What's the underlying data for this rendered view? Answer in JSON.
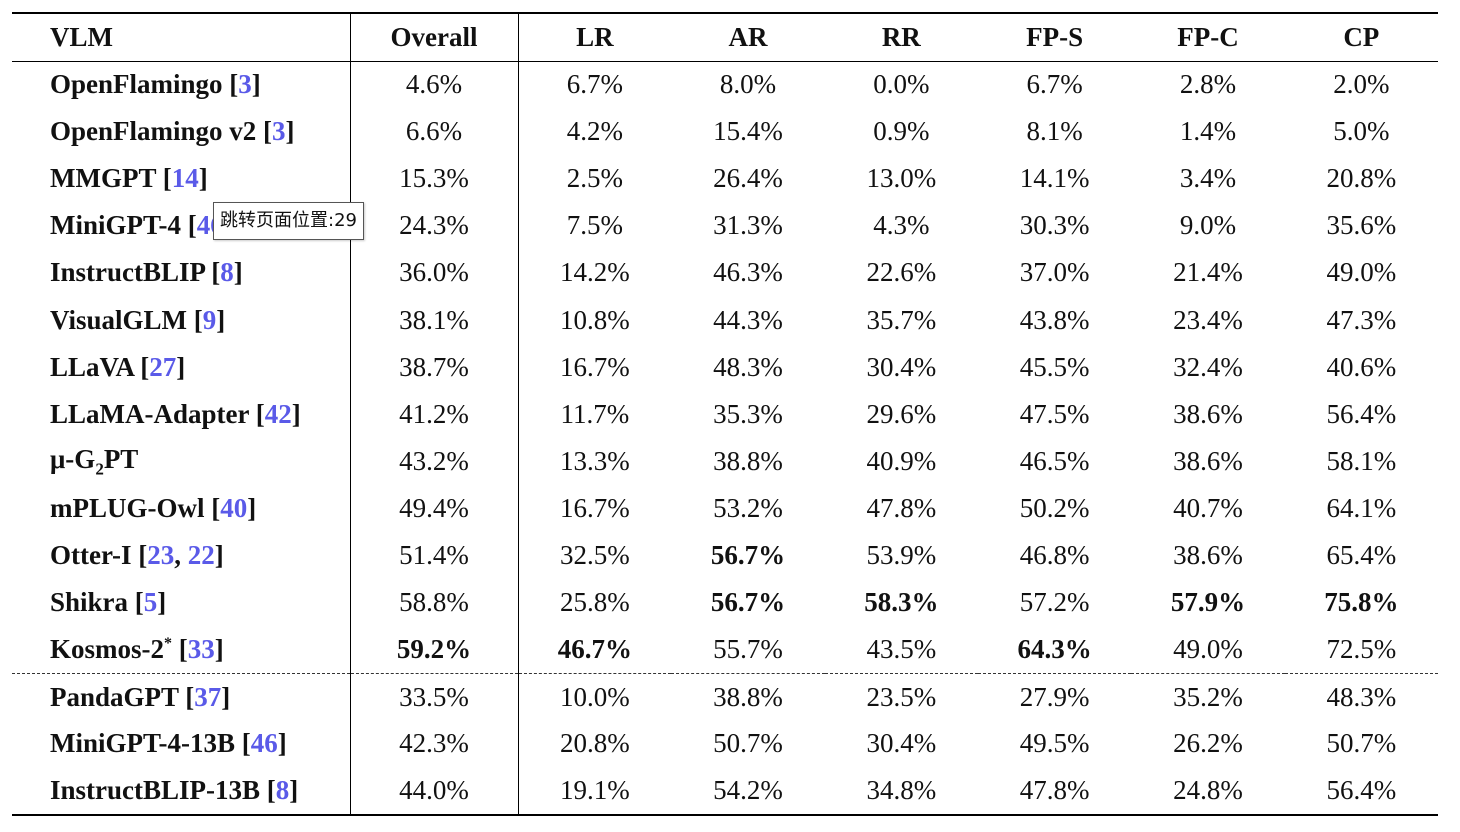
{
  "headers": [
    "VLM",
    "Overall",
    "LR",
    "AR",
    "RR",
    "FP-S",
    "FP-C",
    "CP"
  ],
  "rows": [
    {
      "name": "OpenFlamingo",
      "cites": [
        "3"
      ],
      "values": [
        "4.6%",
        "6.7%",
        "8.0%",
        "0.0%",
        "6.7%",
        "2.8%",
        "2.0%"
      ],
      "bold": []
    },
    {
      "name": "OpenFlamingo v2",
      "cites": [
        "3"
      ],
      "values": [
        "6.6%",
        "4.2%",
        "15.4%",
        "0.9%",
        "8.1%",
        "1.4%",
        "5.0%"
      ],
      "bold": []
    },
    {
      "name": "MMGPT",
      "cites": [
        "14"
      ],
      "values": [
        "15.3%",
        "2.5%",
        "26.4%",
        "13.0%",
        "14.1%",
        "3.4%",
        "20.8%"
      ],
      "bold": []
    },
    {
      "name": "MiniGPT-4",
      "cites": [
        "46"
      ],
      "values": [
        "24.3%",
        "7.5%",
        "31.3%",
        "4.3%",
        "30.3%",
        "9.0%",
        "35.6%"
      ],
      "bold": []
    },
    {
      "name": "InstructBLIP",
      "cites": [
        "8"
      ],
      "values": [
        "36.0%",
        "14.2%",
        "46.3%",
        "22.6%",
        "37.0%",
        "21.4%",
        "49.0%"
      ],
      "bold": []
    },
    {
      "name": "VisualGLM",
      "cites": [
        "9"
      ],
      "values": [
        "38.1%",
        "10.8%",
        "44.3%",
        "35.7%",
        "43.8%",
        "23.4%",
        "47.3%"
      ],
      "bold": []
    },
    {
      "name": "LLaVA",
      "cites": [
        "27"
      ],
      "values": [
        "38.7%",
        "16.7%",
        "48.3%",
        "30.4%",
        "45.5%",
        "32.4%",
        "40.6%"
      ],
      "bold": []
    },
    {
      "name": "LLaMA-Adapter",
      "cites": [
        "42"
      ],
      "values": [
        "41.2%",
        "11.7%",
        "35.3%",
        "29.6%",
        "47.5%",
        "38.6%",
        "56.4%"
      ],
      "bold": []
    },
    {
      "name": "μ-G",
      "sub": "2",
      "name_tail": "PT",
      "cites": [],
      "values": [
        "43.2%",
        "13.3%",
        "38.8%",
        "40.9%",
        "46.5%",
        "38.6%",
        "58.1%"
      ],
      "bold": []
    },
    {
      "name": "mPLUG-Owl",
      "cites": [
        "40"
      ],
      "values": [
        "49.4%",
        "16.7%",
        "53.2%",
        "47.8%",
        "50.2%",
        "40.7%",
        "64.1%"
      ],
      "bold": []
    },
    {
      "name": "Otter-I",
      "cites": [
        "23",
        "22"
      ],
      "values": [
        "51.4%",
        "32.5%",
        "56.7%",
        "53.9%",
        "46.8%",
        "38.6%",
        "65.4%"
      ],
      "bold": [
        2
      ]
    },
    {
      "name": "Shikra",
      "cites": [
        "5"
      ],
      "values": [
        "58.8%",
        "25.8%",
        "56.7%",
        "58.3%",
        "57.2%",
        "57.9%",
        "75.8%"
      ],
      "bold": [
        2,
        3,
        5,
        6
      ]
    },
    {
      "name": "Kosmos-2",
      "sup": "*",
      "cites": [
        "33"
      ],
      "values": [
        "59.2%",
        "46.7%",
        "55.7%",
        "43.5%",
        "64.3%",
        "49.0%",
        "72.5%"
      ],
      "bold": [
        0,
        1,
        4
      ]
    },
    {
      "name": "PandaGPT",
      "cites": [
        "37"
      ],
      "values": [
        "33.5%",
        "10.0%",
        "38.8%",
        "23.5%",
        "27.9%",
        "35.2%",
        "48.3%"
      ],
      "bold": [],
      "sep": true
    },
    {
      "name": "MiniGPT-4-13B",
      "cites": [
        "46"
      ],
      "values": [
        "42.3%",
        "20.8%",
        "50.7%",
        "30.4%",
        "49.5%",
        "26.2%",
        "50.7%"
      ],
      "bold": []
    },
    {
      "name": "InstructBLIP-13B",
      "cites": [
        "8"
      ],
      "values": [
        "44.0%",
        "19.1%",
        "54.2%",
        "34.8%",
        "47.8%",
        "24.8%",
        "56.4%"
      ],
      "bold": []
    }
  ],
  "tooltip": "跳转页面位置:29"
}
